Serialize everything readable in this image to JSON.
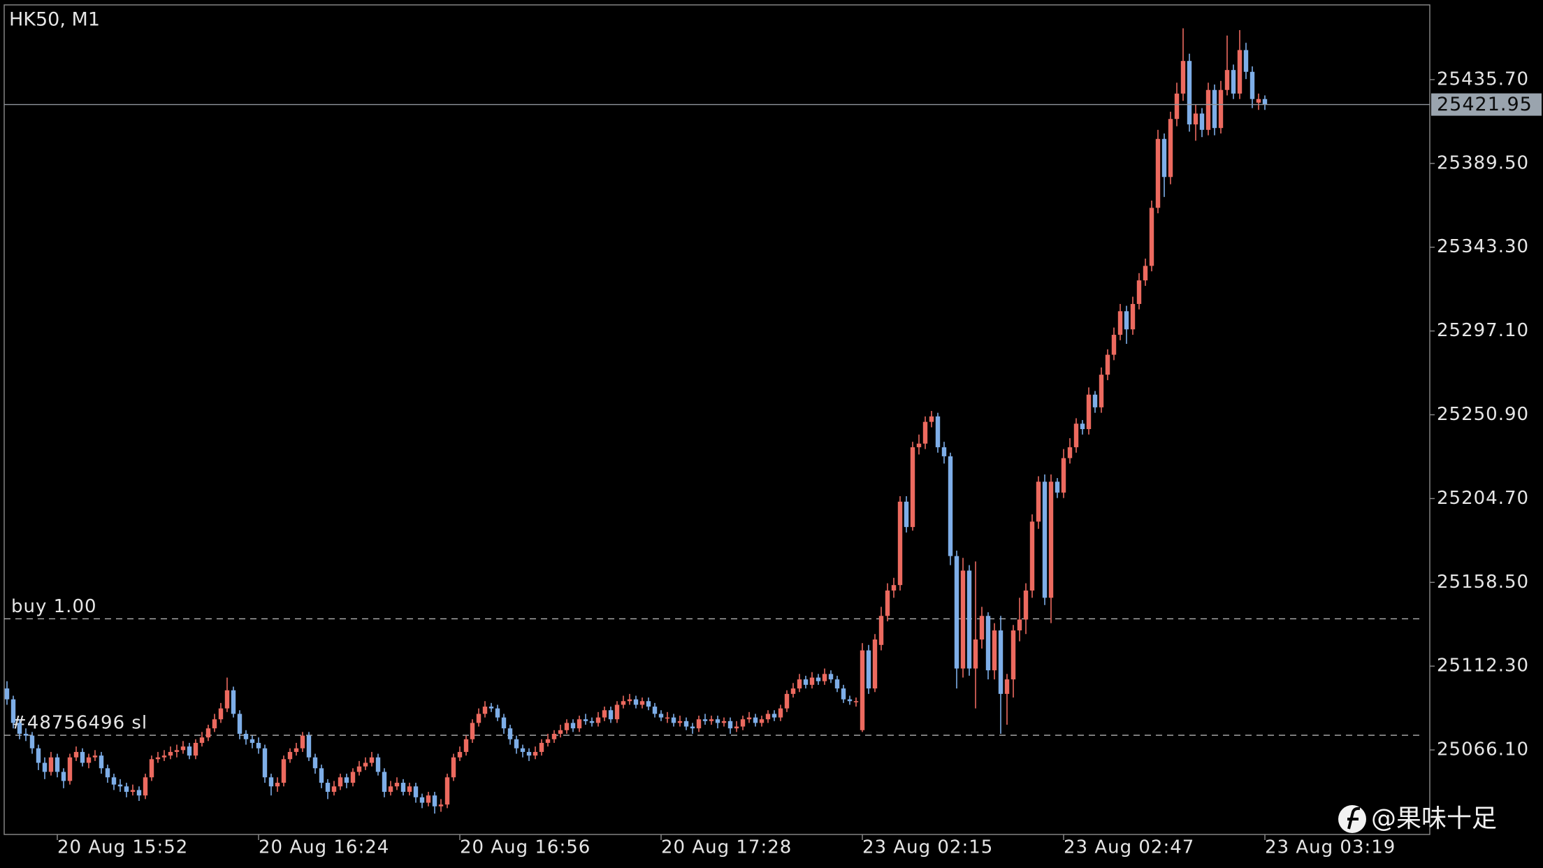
{
  "chart_data": {
    "type": "candlestick",
    "title": "HK50, M1",
    "watermark": "@果味十足",
    "up_color": "#ec6a5f",
    "down_color": "#7eaee8",
    "ylim": [
      25019.5,
      25476.9
    ],
    "yticks": [
      {
        "value": 25435.7,
        "label": "25435.70"
      },
      {
        "value": 25389.5,
        "label": "25389.50"
      },
      {
        "value": 25343.3,
        "label": "25343.30"
      },
      {
        "value": 25297.1,
        "label": "25297.10"
      },
      {
        "value": 25250.9,
        "label": "25250.90"
      },
      {
        "value": 25204.7,
        "label": "25204.70"
      },
      {
        "value": 25158.5,
        "label": "25158.50"
      },
      {
        "value": 25112.3,
        "label": "25112.30"
      },
      {
        "value": 25066.1,
        "label": "25066.10"
      }
    ],
    "current_price": 25421.95,
    "levels": [
      {
        "label": "buy 1.00",
        "value": 25138.4
      },
      {
        "label": "#48756496 sl",
        "value": 25074.2
      }
    ],
    "categories": [
      null,
      null,
      null,
      null,
      null,
      null,
      null,
      null,
      "20 Aug 15:52",
      null,
      null,
      null,
      null,
      null,
      null,
      null,
      null,
      null,
      null,
      null,
      null,
      null,
      null,
      null,
      null,
      null,
      null,
      null,
      null,
      null,
      null,
      null,
      null,
      null,
      null,
      null,
      null,
      null,
      null,
      null,
      "20 Aug 16:24",
      null,
      null,
      null,
      null,
      null,
      null,
      null,
      null,
      null,
      null,
      null,
      null,
      null,
      null,
      null,
      null,
      null,
      null,
      null,
      null,
      null,
      null,
      null,
      null,
      null,
      null,
      null,
      null,
      null,
      null,
      null,
      "20 Aug 16:56",
      null,
      null,
      null,
      null,
      null,
      null,
      null,
      null,
      null,
      null,
      null,
      null,
      null,
      null,
      null,
      null,
      null,
      null,
      null,
      null,
      null,
      null,
      null,
      null,
      null,
      null,
      null,
      null,
      null,
      null,
      null,
      "20 Aug 17:28",
      null,
      null,
      null,
      null,
      null,
      null,
      null,
      null,
      null,
      null,
      null,
      null,
      null,
      null,
      null,
      null,
      null,
      null,
      null,
      null,
      null,
      null,
      null,
      null,
      null,
      null,
      null,
      null,
      null,
      null,
      null,
      "23 Aug 02:15",
      null,
      null,
      null,
      null,
      null,
      null,
      null,
      null,
      null,
      null,
      null,
      null,
      null,
      null,
      null,
      null,
      null,
      null,
      null,
      null,
      null,
      null,
      null,
      null,
      null,
      null,
      null,
      null,
      null,
      null,
      null,
      "23 Aug 02:47",
      null,
      null,
      null,
      null,
      null,
      null,
      null,
      null,
      null,
      null,
      null,
      null,
      null,
      null,
      null,
      null,
      null,
      null,
      null,
      null,
      null,
      null,
      null,
      null,
      null,
      null,
      null,
      null,
      null,
      null,
      null,
      "23 Aug 03:19"
    ],
    "open": [
      25100,
      25094,
      25081,
      25075,
      25074,
      25067,
      25059,
      25054,
      25062,
      25054,
      25049,
      25062,
      25065,
      25059,
      25062,
      25063,
      25056,
      25051,
      25047,
      25046,
      25043,
      25044,
      25041,
      25051,
      25061,
      25062,
      25063,
      25065,
      25066,
      25068,
      25063,
      25070,
      25073,
      25078,
      25083,
      25089,
      25099,
      25086,
      25075,
      25072,
      25070,
      25067,
      25051,
      25046,
      25048,
      25061,
      25065,
      25067,
      25074,
      25062,
      25056,
      25048,
      25043,
      25046,
      25051,
      25048,
      25054,
      25057,
      25059,
      25062,
      25054,
      25043,
      25046,
      25048,
      25043,
      25046,
      25040,
      25037,
      25041,
      25035,
      25036,
      25051,
      25062,
      25065,
      25072,
      25081,
      25086,
      25090,
      25089,
      25084,
      25078,
      25072,
      25067,
      25065,
      25063,
      25065,
      25070,
      25072,
      25075,
      25077,
      25081,
      25078,
      25083,
      25082,
      25081,
      25084,
      25088,
      25083,
      25091,
      25093,
      25094,
      25091,
      25093,
      25090,
      25086,
      25084,
      25084,
      25081,
      25082,
      25079,
      25078,
      25083,
      25082,
      25083,
      25081,
      25082,
      25078,
      25079,
      25083,
      25084,
      25081,
      25083,
      25086,
      25084,
      25089,
      25097,
      25100,
      25105,
      25102,
      25106,
      25104,
      25108,
      25105,
      25100,
      25094,
      25093,
      25077,
      25121,
      25100,
      25124,
      25140,
      25154,
      25157,
      25203,
      25189,
      25233,
      25235,
      25247,
      25250,
      25233,
      25228,
      25173,
      25111,
      25165,
      25111,
      25127,
      25140,
      25110,
      25132,
      25097,
      25105,
      25132,
      25138,
      25154,
      25192,
      25214,
      25150,
      25214,
      25208,
      25227,
      25233,
      25246,
      25243,
      25262,
      25255,
      25273,
      25284,
      25295,
      25308,
      25298,
      25312,
      25325,
      25333,
      25365,
      25403,
      25382,
      25414,
      25428,
      25446,
      25411,
      25417,
      25408,
      25430,
      25409,
      25430,
      25441,
      25428,
      25452,
      25440,
      25423,
      25425
    ],
    "high": [
      25104,
      25096,
      25083,
      25078,
      25076,
      25069,
      25062,
      25065,
      25064,
      25056,
      25064,
      25068,
      25067,
      25064,
      25066,
      25065,
      25058,
      25053,
      25050,
      25048,
      25047,
      25046,
      25053,
      25063,
      25065,
      25066,
      25068,
      25069,
      25071,
      25070,
      25072,
      25076,
      25080,
      25086,
      25092,
      25106,
      25101,
      25088,
      25077,
      25074,
      25073,
      25069,
      25053,
      25051,
      25063,
      25067,
      25070,
      25076,
      25076,
      25064,
      25058,
      25050,
      25049,
      25053,
      25053,
      25056,
      25060,
      25062,
      25065,
      25064,
      25056,
      25049,
      25051,
      25050,
      25048,
      25048,
      25042,
      25043,
      25043,
      25039,
      25053,
      25064,
      25068,
      25074,
      25083,
      25089,
      25093,
      25092,
      25091,
      25086,
      25080,
      25074,
      25069,
      25067,
      25068,
      25072,
      25075,
      25077,
      25080,
      25083,
      25083,
      25085,
      25086,
      25084,
      25087,
      25090,
      25090,
      25093,
      25096,
      25097,
      25096,
      25095,
      25095,
      25092,
      25088,
      25087,
      25086,
      25085,
      25084,
      25081,
      25085,
      25086,
      25085,
      25085,
      25084,
      25084,
      25082,
      25085,
      25087,
      25086,
      25085,
      25088,
      25088,
      25091,
      25099,
      25103,
      25108,
      25107,
      25109,
      25108,
      25111,
      25110,
      25107,
      25102,
      25096,
      25095,
      25125,
      25124,
      25130,
      25145,
      25158,
      25161,
      25206,
      25206,
      25236,
      25240,
      25250,
      25253,
      25252,
      25236,
      25230,
      25176,
      25172,
      25168,
      25170,
      25145,
      25142,
      25136,
      25140,
      25108,
      25135,
      25150,
      25158,
      25196,
      25217,
      25218,
      25218,
      25216,
      25232,
      25238,
      25249,
      25248,
      25266,
      25264,
      25277,
      25287,
      25299,
      25312,
      25311,
      25316,
      25329,
      25337,
      25369,
      25408,
      25406,
      25418,
      25434,
      25464,
      25450,
      25422,
      25420,
      25434,
      25433,
      25435,
      25460,
      25444,
      25463,
      25456,
      25443,
      25428,
      25427
    ],
    "low": [
      25091,
      25078,
      25072,
      25071,
      25064,
      25055,
      25050,
      25052,
      25051,
      25045,
      25047,
      25060,
      25057,
      25056,
      25060,
      25053,
      25048,
      25044,
      25043,
      25040,
      25041,
      25038,
      25039,
      25049,
      25059,
      25060,
      25061,
      25062,
      25064,
      25061,
      25061,
      25068,
      25071,
      25076,
      25081,
      25087,
      25084,
      25072,
      25069,
      25067,
      25064,
      25048,
      25041,
      25043,
      25046,
      25059,
      25063,
      25065,
      25060,
      25053,
      25045,
      25039,
      25041,
      25044,
      25045,
      25046,
      25052,
      25055,
      25057,
      25052,
      25040,
      25041,
      25044,
      25041,
      25041,
      25037,
      25034,
      25035,
      25031,
      25032,
      25034,
      25049,
      25060,
      25063,
      25070,
      25079,
      25084,
      25087,
      25082,
      25075,
      25069,
      25064,
      25062,
      25060,
      25061,
      25063,
      25068,
      25070,
      25073,
      25075,
      25076,
      25076,
      25080,
      25079,
      25079,
      25082,
      25081,
      25081,
      25089,
      25091,
      25089,
      25089,
      25088,
      25084,
      25082,
      25081,
      25079,
      25079,
      25077,
      25075,
      25076,
      25080,
      25080,
      25078,
      25079,
      25075,
      25076,
      25077,
      25081,
      25079,
      25079,
      25081,
      25082,
      25082,
      25087,
      25095,
      25098,
      25100,
      25100,
      25102,
      25102,
      25103,
      25098,
      25092,
      25091,
      25090,
      25076,
      25097,
      25098,
      25121,
      25137,
      25150,
      25154,
      25186,
      25187,
      25229,
      25232,
      25244,
      25230,
      25224,
      25168,
      25100,
      25106,
      25107,
      25089,
      25122,
      25105,
      25105,
      25075,
      25080,
      25095,
      25126,
      25130,
      25150,
      25188,
      25146,
      25136,
      25205,
      25205,
      25224,
      25230,
      25240,
      25240,
      25252,
      25252,
      25270,
      25281,
      25292,
      25290,
      25295,
      25309,
      25322,
      25330,
      25362,
      25371,
      25378,
      25410,
      25424,
      25407,
      25402,
      25404,
      25405,
      25405,
      25406,
      25427,
      25425,
      25425,
      25436,
      25420,
      25419,
      25419
    ],
    "close": [
      25094,
      25081,
      25075,
      25074,
      25067,
      25059,
      25054,
      25062,
      25054,
      25049,
      25062,
      25065,
      25059,
      25062,
      25063,
      25056,
      25051,
      25047,
      25046,
      25043,
      25044,
      25041,
      25051,
      25061,
      25062,
      25063,
      25065,
      25066,
      25068,
      25063,
      25070,
      25073,
      25078,
      25083,
      25089,
      25099,
      25086,
      25075,
      25072,
      25070,
      25067,
      25051,
      25046,
      25048,
      25061,
      25065,
      25067,
      25074,
      25062,
      25056,
      25048,
      25043,
      25046,
      25051,
      25048,
      25054,
      25057,
      25059,
      25062,
      25054,
      25043,
      25046,
      25048,
      25043,
      25046,
      25040,
      25037,
      25041,
      25035,
      25036,
      25051,
      25062,
      25065,
      25072,
      25081,
      25086,
      25090,
      25089,
      25084,
      25078,
      25072,
      25067,
      25065,
      25063,
      25065,
      25070,
      25072,
      25075,
      25077,
      25081,
      25078,
      25083,
      25082,
      25081,
      25084,
      25088,
      25083,
      25091,
      25093,
      25094,
      25091,
      25093,
      25090,
      25086,
      25084,
      25084,
      25081,
      25082,
      25079,
      25078,
      25083,
      25082,
      25083,
      25081,
      25082,
      25078,
      25079,
      25083,
      25084,
      25081,
      25083,
      25086,
      25084,
      25089,
      25097,
      25100,
      25105,
      25102,
      25106,
      25104,
      25108,
      25105,
      25100,
      25094,
      25093,
      25093,
      25121,
      25100,
      25127,
      25140,
      25154,
      25157,
      25203,
      25189,
      25233,
      25235,
      25247,
      25250,
      25233,
      25228,
      25173,
      25111,
      25165,
      25111,
      25127,
      25140,
      25110,
      25132,
      25097,
      25105,
      25132,
      25138,
      25154,
      25192,
      25214,
      25150,
      25214,
      25208,
      25227,
      25233,
      25246,
      25243,
      25262,
      25255,
      25273,
      25284,
      25295,
      25308,
      25298,
      25312,
      25325,
      25333,
      25365,
      25403,
      25382,
      25414,
      25428,
      25446,
      25411,
      25417,
      25408,
      25430,
      25409,
      25430,
      25441,
      25428,
      25452,
      25440,
      25425,
      25425,
      25421.95
    ]
  }
}
